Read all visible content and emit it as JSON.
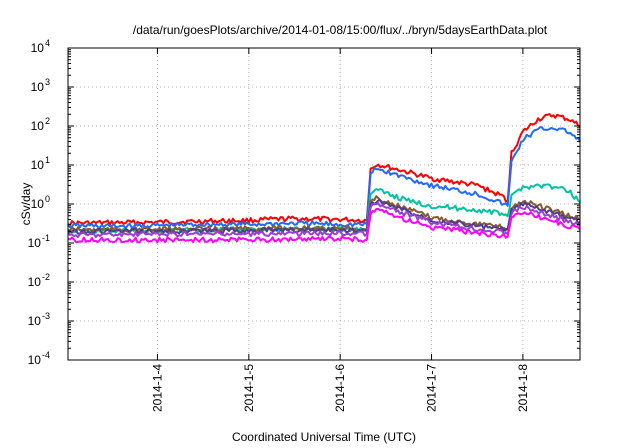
{
  "chart_data": {
    "type": "line",
    "title": "/data/run/goesPlots/archive/2014-01-08/15:00/flux/../bryn/5daysEarthData.plot",
    "xlabel": "Coordinated Universal Time (UTC)",
    "ylabel": "cSv/day",
    "yscale": "log",
    "ylim": [
      0.0001,
      10000
    ],
    "xlim": [
      "2014-01-03 00:30",
      "2014-01-08 15:00"
    ],
    "grid": true,
    "y_ticks": [
      {
        "base": "10",
        "exp": "-4"
      },
      {
        "base": "10",
        "exp": "-3"
      },
      {
        "base": "10",
        "exp": "-2"
      },
      {
        "base": "10",
        "exp": "-1"
      },
      {
        "base": "10",
        "exp": "0"
      },
      {
        "base": "10",
        "exp": "1"
      },
      {
        "base": "10",
        "exp": "2"
      },
      {
        "base": "10",
        "exp": "3"
      },
      {
        "base": "10",
        "exp": "4"
      }
    ],
    "x_ticks": [
      "2014-1-4",
      "2014-1-5",
      "2014-1-6",
      "2014-1-7",
      "2014-1-8"
    ],
    "series": [
      {
        "color": "#ff0000",
        "values": [
          [
            "2014-01-03 00:30",
            0.32
          ],
          [
            "2014-01-03 12:00",
            0.33
          ],
          [
            "2014-01-04 00:00",
            0.34
          ],
          [
            "2014-01-04 12:00",
            0.36
          ],
          [
            "2014-01-05 00:00",
            0.38
          ],
          [
            "2014-01-05 12:00",
            0.42
          ],
          [
            "2014-01-06 00:00",
            0.4
          ],
          [
            "2014-01-06 07:00",
            0.38
          ],
          [
            "2014-01-06 08:00",
            8.0
          ],
          [
            "2014-01-06 09:30",
            10.5
          ],
          [
            "2014-01-06 18:00",
            6.5
          ],
          [
            "2014-01-07 00:00",
            4.5
          ],
          [
            "2014-01-07 12:00",
            3.0
          ],
          [
            "2014-01-07 19:00",
            1.5
          ],
          [
            "2014-01-07 20:00",
            1.2
          ],
          [
            "2014-01-07 21:00",
            20.0
          ],
          [
            "2014-01-08 00:00",
            70.0
          ],
          [
            "2014-01-08 04:00",
            150.0
          ],
          [
            "2014-01-08 08:00",
            190.0
          ],
          [
            "2014-01-08 12:00",
            150.0
          ],
          [
            "2014-01-08 15:00",
            100.0
          ]
        ]
      },
      {
        "color": "#1f6bff",
        "values": [
          [
            "2014-01-03 00:30",
            0.28
          ],
          [
            "2014-01-03 12:00",
            0.27
          ],
          [
            "2014-01-04 00:00",
            0.28
          ],
          [
            "2014-01-04 12:00",
            0.3
          ],
          [
            "2014-01-05 00:00",
            0.3
          ],
          [
            "2014-01-05 12:00",
            0.32
          ],
          [
            "2014-01-06 00:00",
            0.3
          ],
          [
            "2014-01-06 07:00",
            0.3
          ],
          [
            "2014-01-06 08:00",
            6.0
          ],
          [
            "2014-01-06 09:30",
            8.0
          ],
          [
            "2014-01-06 18:00",
            4.5
          ],
          [
            "2014-01-07 00:00",
            3.0
          ],
          [
            "2014-01-07 12:00",
            1.8
          ],
          [
            "2014-01-07 19:00",
            1.0
          ],
          [
            "2014-01-07 20:00",
            0.9
          ],
          [
            "2014-01-07 21:00",
            12.0
          ],
          [
            "2014-01-08 00:00",
            45.0
          ],
          [
            "2014-01-08 04:00",
            80.0
          ],
          [
            "2014-01-08 08:00",
            90.0
          ],
          [
            "2014-01-08 12:00",
            70.0
          ],
          [
            "2014-01-08 15:00",
            40.0
          ]
        ]
      },
      {
        "color": "#00c3a0",
        "values": [
          [
            "2014-01-03 00:30",
            0.2
          ],
          [
            "2014-01-04 00:00",
            0.21
          ],
          [
            "2014-01-05 00:00",
            0.22
          ],
          [
            "2014-01-06 00:00",
            0.23
          ],
          [
            "2014-01-06 07:00",
            0.22
          ],
          [
            "2014-01-06 08:00",
            1.8
          ],
          [
            "2014-01-06 09:30",
            2.3
          ],
          [
            "2014-01-06 18:00",
            1.2
          ],
          [
            "2014-01-07 00:00",
            0.9
          ],
          [
            "2014-01-07 12:00",
            0.7
          ],
          [
            "2014-01-07 19:00",
            0.55
          ],
          [
            "2014-01-07 20:00",
            0.5
          ],
          [
            "2014-01-07 21:00",
            1.5
          ],
          [
            "2014-01-08 00:00",
            2.8
          ],
          [
            "2014-01-08 06:00",
            3.0
          ],
          [
            "2014-01-08 12:00",
            2.2
          ],
          [
            "2014-01-08 15:00",
            1.1
          ]
        ]
      },
      {
        "color": "#8b5a2b",
        "values": [
          [
            "2014-01-03 00:30",
            0.22
          ],
          [
            "2014-01-04 00:00",
            0.22
          ],
          [
            "2014-01-05 00:00",
            0.23
          ],
          [
            "2014-01-06 00:00",
            0.24
          ],
          [
            "2014-01-06 07:00",
            0.22
          ],
          [
            "2014-01-06 08:00",
            1.2
          ],
          [
            "2014-01-06 09:30",
            1.4
          ],
          [
            "2014-01-07 00:00",
            0.45
          ],
          [
            "2014-01-07 19:00",
            0.25
          ],
          [
            "2014-01-07 20:00",
            0.23
          ],
          [
            "2014-01-07 21:00",
            0.8
          ],
          [
            "2014-01-08 00:00",
            1.2
          ],
          [
            "2014-01-08 15:00",
            0.4
          ]
        ]
      },
      {
        "color": "#4b3f8c",
        "values": [
          [
            "2014-01-03 00:30",
            0.2
          ],
          [
            "2014-01-04 00:00",
            0.2
          ],
          [
            "2014-01-05 00:00",
            0.21
          ],
          [
            "2014-01-06 00:00",
            0.22
          ],
          [
            "2014-01-06 07:00",
            0.2
          ],
          [
            "2014-01-06 08:00",
            1.0
          ],
          [
            "2014-01-06 09:30",
            1.2
          ],
          [
            "2014-01-07 00:00",
            0.4
          ],
          [
            "2014-01-07 19:00",
            0.22
          ],
          [
            "2014-01-07 20:00",
            0.2
          ],
          [
            "2014-01-07 21:00",
            0.7
          ],
          [
            "2014-01-08 00:00",
            1.0
          ],
          [
            "2014-01-08 15:00",
            0.35
          ]
        ]
      },
      {
        "color": "#9b3fd1",
        "values": [
          [
            "2014-01-03 00:30",
            0.16
          ],
          [
            "2014-01-04 00:00",
            0.17
          ],
          [
            "2014-01-05 00:00",
            0.17
          ],
          [
            "2014-01-06 00:00",
            0.18
          ],
          [
            "2014-01-06 07:00",
            0.17
          ],
          [
            "2014-01-06 08:00",
            0.85
          ],
          [
            "2014-01-06 09:30",
            1.0
          ],
          [
            "2014-01-07 00:00",
            0.33
          ],
          [
            "2014-01-07 19:00",
            0.19
          ],
          [
            "2014-01-07 20:00",
            0.18
          ],
          [
            "2014-01-07 21:00",
            0.6
          ],
          [
            "2014-01-08 00:00",
            0.85
          ],
          [
            "2014-01-08 15:00",
            0.28
          ]
        ]
      },
      {
        "color": "#ff00ff",
        "values": [
          [
            "2014-01-03 00:30",
            0.12
          ],
          [
            "2014-01-04 00:00",
            0.12
          ],
          [
            "2014-01-05 00:00",
            0.12
          ],
          [
            "2014-01-06 00:00",
            0.13
          ],
          [
            "2014-01-06 07:00",
            0.12
          ],
          [
            "2014-01-06 08:00",
            0.55
          ],
          [
            "2014-01-06 09:30",
            0.7
          ],
          [
            "2014-01-07 00:00",
            0.25
          ],
          [
            "2014-01-07 19:00",
            0.15
          ],
          [
            "2014-01-07 20:00",
            0.14
          ],
          [
            "2014-01-07 21:00",
            0.45
          ],
          [
            "2014-01-08 00:00",
            0.65
          ],
          [
            "2014-01-08 15:00",
            0.22
          ]
        ]
      }
    ]
  }
}
